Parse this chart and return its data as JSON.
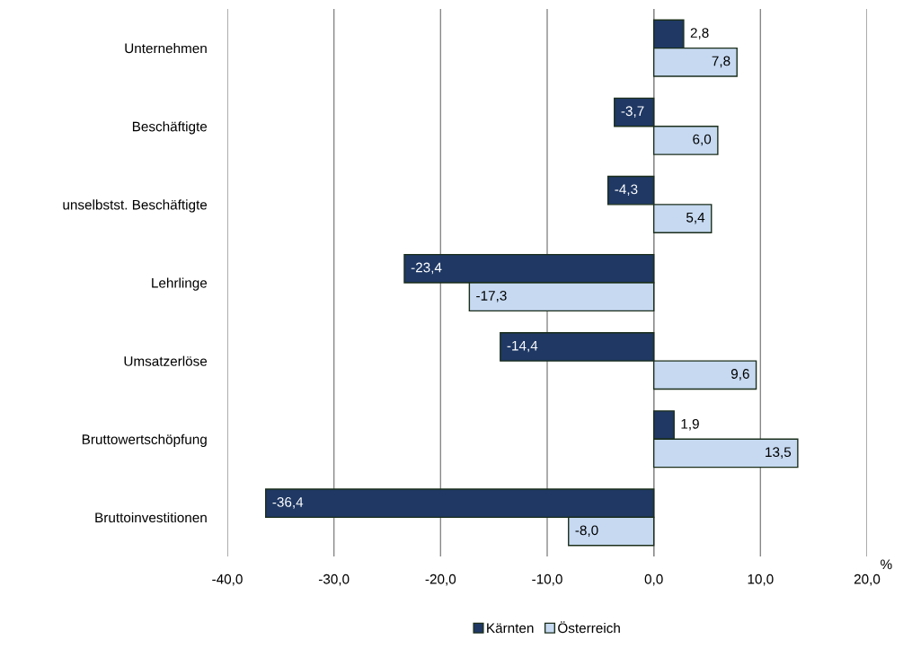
{
  "chart_data": {
    "type": "bar",
    "orientation": "horizontal",
    "categories": [
      "Unternehmen",
      "Beschäftigte",
      "unselbstst. Beschäftigte",
      "Lehrlinge",
      "Umsatzerlöse",
      "Bruttowertschöpfung",
      "Bruttoinvestitionen"
    ],
    "series": [
      {
        "name": "Kärnten",
        "color": "#1f3864",
        "values": [
          2.8,
          -3.7,
          -4.3,
          -23.4,
          -14.4,
          1.9,
          -36.4
        ],
        "value_labels": [
          "2,8",
          "-3,7",
          "-4,3",
          "-23,4",
          "-14,4",
          "1,9",
          "-36,4"
        ]
      },
      {
        "name": "Österreich",
        "color": "#c6d9f1",
        "values": [
          7.8,
          6.0,
          5.4,
          -17.3,
          9.6,
          13.5,
          -8.0
        ],
        "value_labels": [
          "7,8",
          "6,0",
          "5,4",
          "-17,3",
          "9,6",
          "13,5",
          "-8,0"
        ]
      }
    ],
    "xlabel": "%",
    "xlim": [
      -40,
      20
    ],
    "xticks": [
      {
        "value": -40,
        "label": "-40,0"
      },
      {
        "value": -30,
        "label": "-30,0"
      },
      {
        "value": -20,
        "label": "-20,0"
      },
      {
        "value": -10,
        "label": "-10,0"
      },
      {
        "value": 0,
        "label": "0,0"
      },
      {
        "value": 10,
        "label": "10,0"
      },
      {
        "value": 20,
        "label": "20,0"
      }
    ],
    "grid": "x",
    "legend": "bottom"
  }
}
